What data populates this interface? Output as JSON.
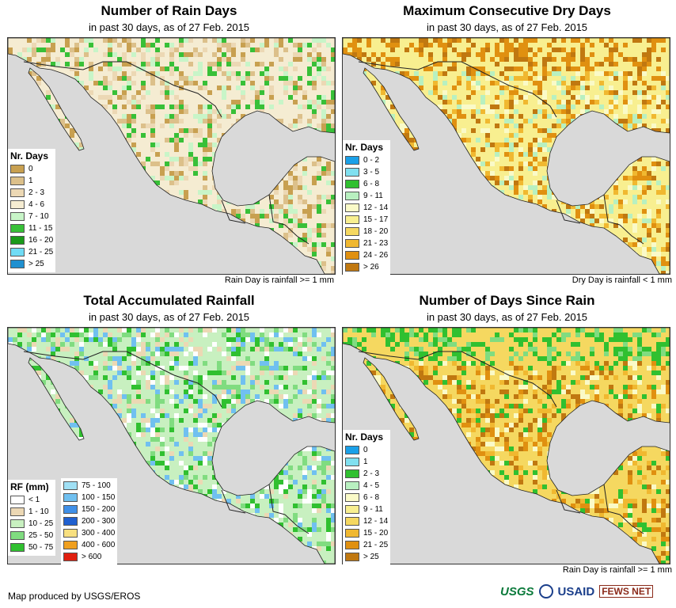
{
  "panels": [
    {
      "id": "rain-days",
      "title": "Number of Rain Days",
      "subtitle": "in past 30 days, as of 27 Feb. 2015",
      "note": "Rain Day is rainfall >= 1 mm",
      "legend_title": "Nr. Days",
      "legend": [
        {
          "label": "0",
          "color": "#c8a050"
        },
        {
          "label": "1",
          "color": "#dcc08a"
        },
        {
          "label": "2 - 3",
          "color": "#ecd8b4"
        },
        {
          "label": "4 - 6",
          "color": "#f5ecd2"
        },
        {
          "label": "7 - 10",
          "color": "#c8f5c8"
        },
        {
          "label": "11 - 15",
          "color": "#38c038"
        },
        {
          "label": "16 - 20",
          "color": "#1a9a1a"
        },
        {
          "label": "21 - 25",
          "color": "#70dcf5"
        },
        {
          "label": "> 25",
          "color": "#2090d0"
        }
      ]
    },
    {
      "id": "max-dry-days",
      "title": "Maximum Consecutive Dry Days",
      "subtitle": "in past 30 days, as of 27 Feb. 2015",
      "note": "Dry Day is rainfall < 1 mm",
      "legend_title": "Nr. Days",
      "legend": [
        {
          "label": "0 - 2",
          "color": "#1aa0e8"
        },
        {
          "label": "3 - 5",
          "color": "#80e0f0"
        },
        {
          "label": "6 - 8",
          "color": "#30c030"
        },
        {
          "label": "9 - 11",
          "color": "#b8f0c0"
        },
        {
          "label": "12 - 14",
          "color": "#fafac8"
        },
        {
          "label": "15 - 17",
          "color": "#f8ef90"
        },
        {
          "label": "18 - 20",
          "color": "#f5d860"
        },
        {
          "label": "21 - 23",
          "color": "#f0b830"
        },
        {
          "label": "24 - 26",
          "color": "#e09010"
        },
        {
          "label": "> 26",
          "color": "#c07810"
        }
      ]
    },
    {
      "id": "total-rainfall",
      "title": "Total Accumulated Rainfall",
      "subtitle": "in past 30 days, as of 27 Feb. 2015",
      "legend_title": "RF (mm)",
      "legend": [
        {
          "label": "< 1",
          "color": "#ffffff"
        },
        {
          "label": "1 - 10",
          "color": "#ecd8b4"
        },
        {
          "label": "10 - 25",
          "color": "#c8f0c0"
        },
        {
          "label": "25 - 50",
          "color": "#80dc80"
        },
        {
          "label": "50 - 75",
          "color": "#30c030"
        }
      ],
      "legend2": [
        {
          "label": "75 - 100",
          "color": "#a0e0f5"
        },
        {
          "label": "100 - 150",
          "color": "#70c0f0"
        },
        {
          "label": "150 - 200",
          "color": "#4090e8"
        },
        {
          "label": "200 - 300",
          "color": "#2060d0"
        },
        {
          "label": "300 - 400",
          "color": "#f8e080"
        },
        {
          "label": "400 - 600",
          "color": "#f0a020"
        },
        {
          "label": "> 600",
          "color": "#e02010"
        }
      ]
    },
    {
      "id": "days-since-rain",
      "title": "Number of Days Since Rain",
      "subtitle": "in past 30 days, as of 27 Feb. 2015",
      "note": "Rain Day is rainfall >= 1 mm",
      "legend_title": "Nr. Days",
      "legend": [
        {
          "label": "0",
          "color": "#1aa0e8"
        },
        {
          "label": "1",
          "color": "#80e0f0"
        },
        {
          "label": "2 - 3",
          "color": "#30c030"
        },
        {
          "label": "4 - 5",
          "color": "#b8f0c0"
        },
        {
          "label": "6 - 8",
          "color": "#fafac8"
        },
        {
          "label": "9 - 11",
          "color": "#f8ef90"
        },
        {
          "label": "12 - 14",
          "color": "#f5d860"
        },
        {
          "label": "15 - 20",
          "color": "#f0b830"
        },
        {
          "label": "21 - 25",
          "color": "#e09010"
        },
        {
          "label": "> 25",
          "color": "#c07810"
        }
      ]
    }
  ],
  "footer": {
    "credit": "Map produced by USGS/EROS",
    "logos": [
      "USGS",
      "USAID",
      "FEWS NET"
    ]
  },
  "colors": {
    "ocean": "#d9d9d9",
    "border": "#222222"
  }
}
